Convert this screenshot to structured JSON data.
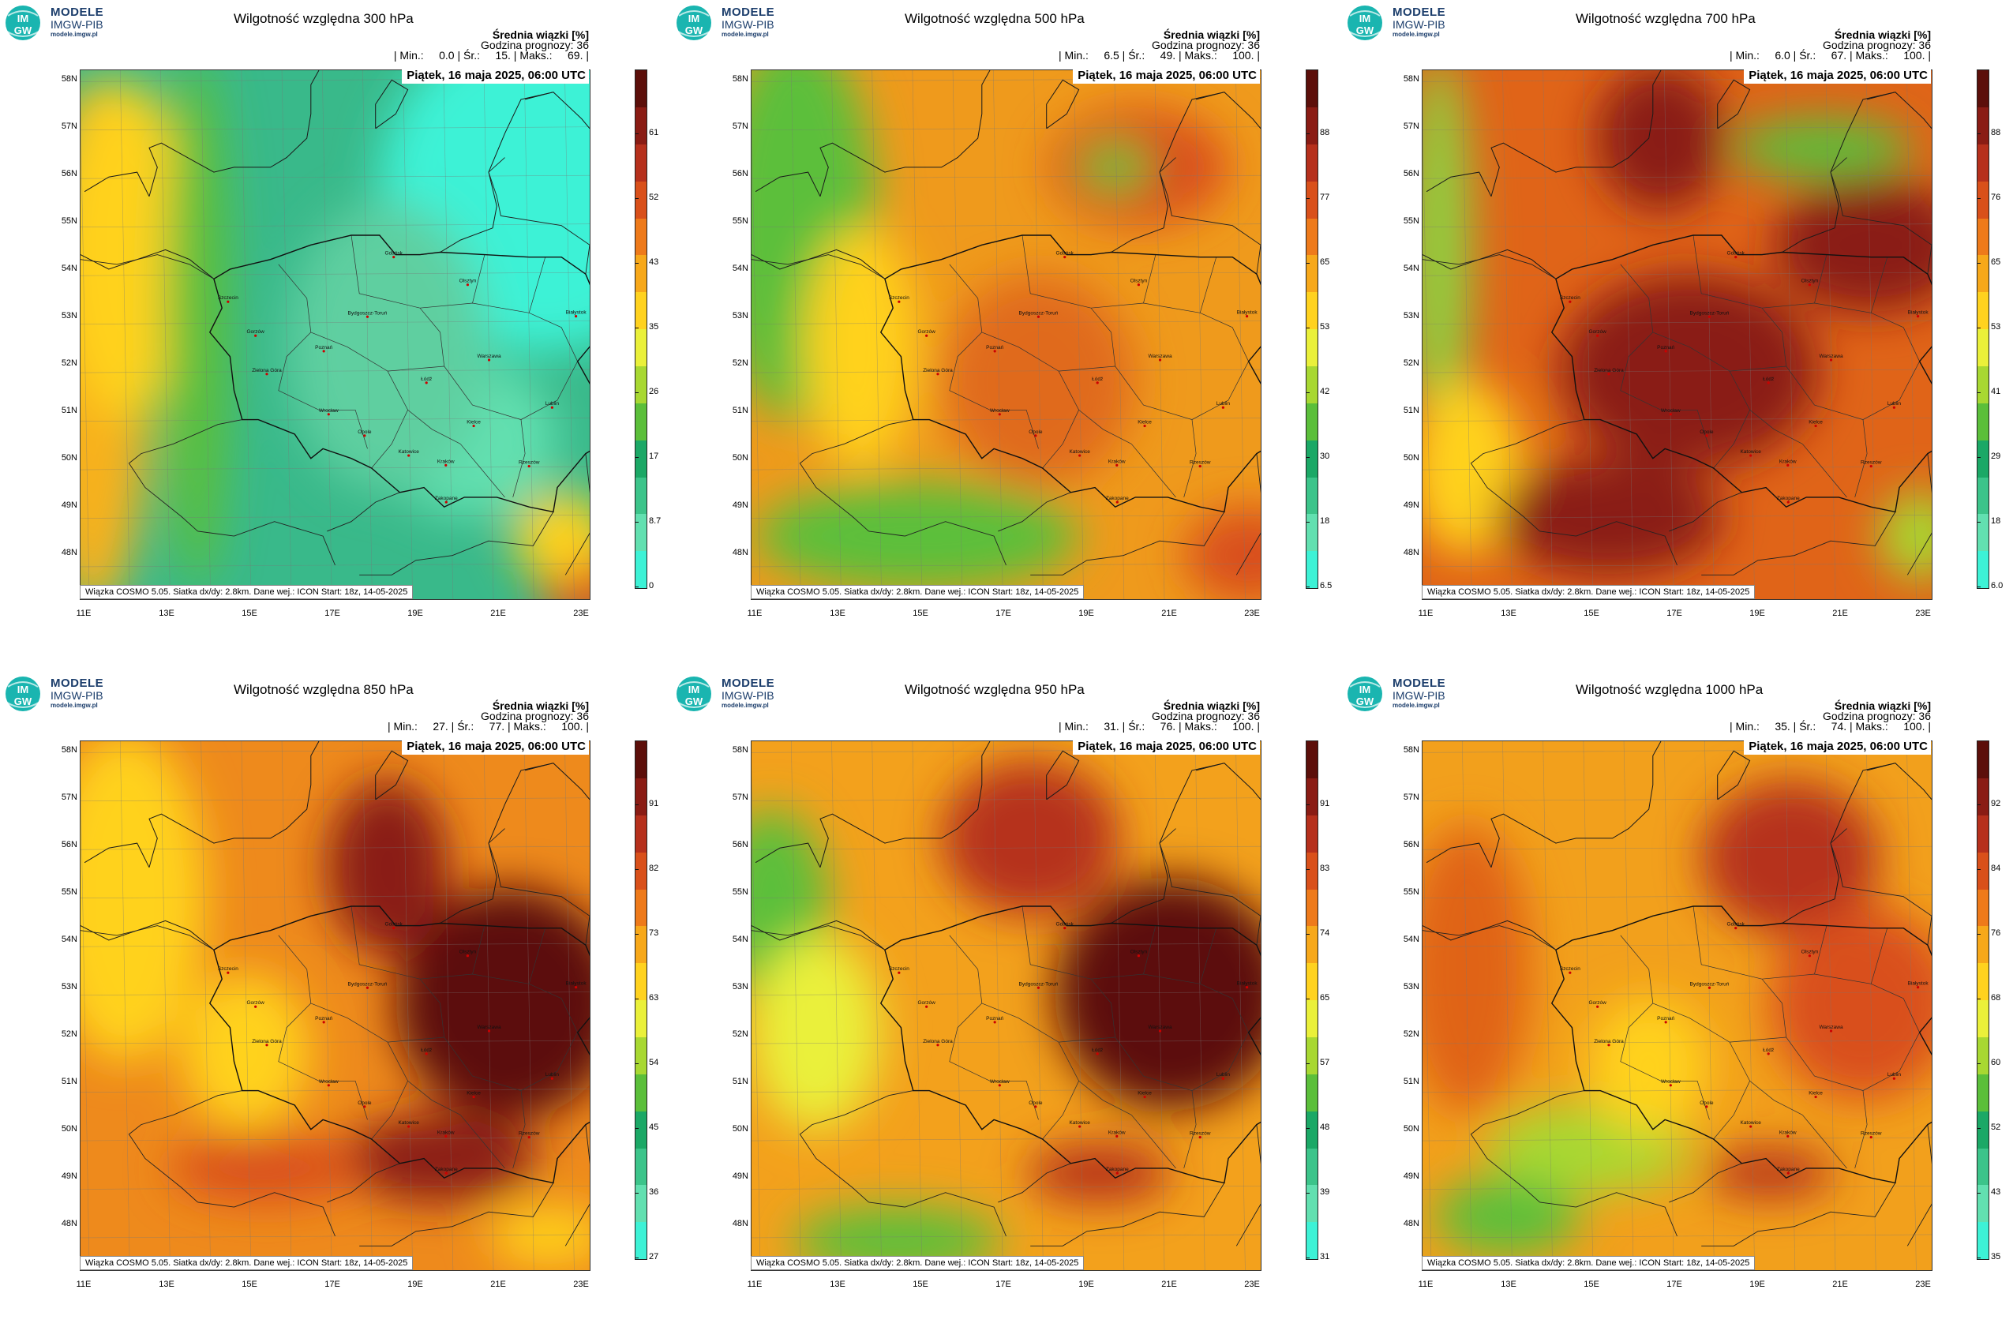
{
  "logo": {
    "badge_top": "IM",
    "badge_bottom": "GW",
    "brand": "MODELE",
    "org": "IMGW-PIB",
    "url": "modele.imgw.pl"
  },
  "common": {
    "mean_label": "Średnia wiązki [%]",
    "forecast_hour_label": "Godzina prognozy: 36",
    "date_label": "Piątek, 16 maja 2025, 06:00 UTC",
    "caption": "Wiązka COSMO 5.05. Siatka dx/dy: 2.8km. Dane wej.: ICON Start: 18z, 14-05-2025",
    "lat_labels": [
      "58N",
      "57N",
      "56N",
      "55N",
      "54N",
      "53N",
      "52N",
      "51N",
      "50N",
      "49N",
      "48N"
    ],
    "lon_labels": [
      "11E",
      "13E",
      "15E",
      "17E",
      "19E",
      "21E",
      "23E"
    ],
    "cities": [
      "Szczecin",
      "Gdańsk",
      "Olsztyn",
      "Białystok",
      "Bydgoszcz-Toruń",
      "Gorzów",
      "Poznań",
      "Warszawa",
      "Zielona Góra",
      "Łódź",
      "Lublin",
      "Wrocław",
      "Kielce",
      "Opole",
      "Katowice",
      "Kraków",
      "Rzeszów",
      "Zakopane"
    ]
  },
  "color_palettes": {
    "low_to_high": [
      "#3df2d6",
      "#62e0b0",
      "#3cc48a",
      "#1ba866",
      "#5bbf3a",
      "#a8d832",
      "#eaf03a",
      "#ffd21f",
      "#f7a81a",
      "#ee7a1a",
      "#d9501a",
      "#b6301c",
      "#8a1c14",
      "#5c0f0a"
    ]
  },
  "panels": [
    {
      "id": "p300",
      "title": "Wilgotność względna 300 hPa",
      "stats": "| Min.:     0.0 | Śr.:     15. | Maks.:     69. |",
      "colorbar_ticks": [
        "61",
        "52",
        "43",
        "35",
        "26",
        "17",
        "8.7",
        "0"
      ],
      "background_color": "#39b98a",
      "blobs": [
        {
          "shape": "ellipse",
          "lon": 22.3,
          "lat": 55.8,
          "rx_deg": 4.0,
          "ry_deg": 3.4,
          "color": "#3df2d6"
        },
        {
          "shape": "ellipse",
          "lon": 20.5,
          "lat": 50.6,
          "rx_deg": 2.2,
          "ry_deg": 1.6,
          "color": "#62e0b0"
        },
        {
          "shape": "ellipse",
          "lon": 18.5,
          "lat": 52.5,
          "rx_deg": 2.5,
          "ry_deg": 3.0,
          "color": "#5ecfa0"
        },
        {
          "shape": "ellipse",
          "lon": 11.2,
          "lat": 52.5,
          "rx_deg": 1.5,
          "ry_deg": 5.5,
          "color": "#f7b11a"
        },
        {
          "shape": "ellipse",
          "lon": 12.0,
          "lat": 54.5,
          "rx_deg": 1.6,
          "ry_deg": 3.5,
          "color": "#ffd21f"
        },
        {
          "shape": "ellipse",
          "lon": 13.8,
          "lat": 53.0,
          "rx_deg": 0.8,
          "ry_deg": 5.5,
          "color": "#5bbf3a"
        },
        {
          "shape": "ellipse",
          "lon": 23.4,
          "lat": 47.6,
          "rx_deg": 1.2,
          "ry_deg": 1.0,
          "color": "#d9501a"
        },
        {
          "shape": "ellipse",
          "lon": 22.8,
          "lat": 48.6,
          "rx_deg": 1.2,
          "ry_deg": 0.9,
          "color": "#ffd21f"
        }
      ]
    },
    {
      "id": "p500",
      "title": "Wilgotność względna 500 hPa",
      "stats": "| Min.:     6.5 | Śr.:     49. | Maks.:     100. |",
      "colorbar_ticks": [
        "88",
        "77",
        "65",
        "53",
        "42",
        "30",
        "18",
        "6.5"
      ],
      "background_color": "#ef9a1c",
      "blobs": [
        {
          "shape": "ellipse",
          "lon": 12.0,
          "lat": 55.0,
          "rx_deg": 2.0,
          "ry_deg": 4.0,
          "color": "#5bbf3a"
        },
        {
          "shape": "ellipse",
          "lon": 15.0,
          "lat": 48.6,
          "rx_deg": 4.0,
          "ry_deg": 1.1,
          "color": "#5bbf3a"
        },
        {
          "shape": "ellipse",
          "lon": 20.5,
          "lat": 56.2,
          "rx_deg": 2.2,
          "ry_deg": 1.2,
          "color": "#d9501a"
        },
        {
          "shape": "ellipse",
          "lon": 19.9,
          "lat": 56.2,
          "rx_deg": 0.9,
          "ry_deg": 0.5,
          "color": "#5bbf3a"
        },
        {
          "shape": "ellipse",
          "lon": 18.0,
          "lat": 51.8,
          "rx_deg": 2.4,
          "ry_deg": 2.2,
          "color": "#e06a1a"
        },
        {
          "shape": "ellipse",
          "lon": 13.6,
          "lat": 52.5,
          "rx_deg": 1.4,
          "ry_deg": 2.5,
          "color": "#ffd21f"
        },
        {
          "shape": "ellipse",
          "lon": 23.2,
          "lat": 48.2,
          "rx_deg": 1.6,
          "ry_deg": 1.0,
          "color": "#d9501a"
        }
      ]
    },
    {
      "id": "p700",
      "title": "Wilgotność względna 700 hPa",
      "stats": "| Min.:     6.0 | Śr.:     67. | Maks.:     100. |",
      "colorbar_ticks": [
        "88",
        "76",
        "65",
        "53",
        "41",
        "29",
        "18",
        "6.0"
      ],
      "background_color": "#e06418",
      "blobs": [
        {
          "shape": "ellipse",
          "lon": 11.3,
          "lat": 54.5,
          "rx_deg": 0.8,
          "ry_deg": 4.0,
          "color": "#8fd040"
        },
        {
          "shape": "ellipse",
          "lon": 12.0,
          "lat": 50.0,
          "rx_deg": 1.4,
          "ry_deg": 1.8,
          "color": "#ffd21f"
        },
        {
          "shape": "ellipse",
          "lon": 17.5,
          "lat": 52.0,
          "rx_deg": 3.2,
          "ry_deg": 2.0,
          "color": "#8a1c14"
        },
        {
          "shape": "ellipse",
          "lon": 15.5,
          "lat": 49.0,
          "rx_deg": 2.8,
          "ry_deg": 1.2,
          "color": "#8a1c14"
        },
        {
          "shape": "ellipse",
          "lon": 22.0,
          "lat": 54.6,
          "rx_deg": 2.4,
          "ry_deg": 1.4,
          "color": "#8a1c14"
        },
        {
          "shape": "ellipse",
          "lon": 20.8,
          "lat": 56.6,
          "rx_deg": 2.2,
          "ry_deg": 0.6,
          "color": "#5bbf3a"
        },
        {
          "shape": "ellipse",
          "lon": 16.8,
          "lat": 56.8,
          "rx_deg": 1.6,
          "ry_deg": 1.5,
          "color": "#8a1c14"
        },
        {
          "shape": "ellipse",
          "lon": 23.2,
          "lat": 48.6,
          "rx_deg": 1.0,
          "ry_deg": 0.9,
          "color": "#a8d832"
        }
      ]
    },
    {
      "id": "p850",
      "title": "Wilgotność względna 850 hPa",
      "stats": "| Min.:     27. | Śr.:     77. | Maks.:     100. |",
      "colorbar_ticks": [
        "91",
        "82",
        "73",
        "63",
        "54",
        "45",
        "36",
        "27"
      ],
      "background_color": "#ee8a1c",
      "blobs": [
        {
          "shape": "ellipse",
          "lon": 12.0,
          "lat": 55.0,
          "rx_deg": 2.0,
          "ry_deg": 3.4,
          "color": "#ffd21f"
        },
        {
          "shape": "ellipse",
          "lon": 21.5,
          "lat": 52.8,
          "rx_deg": 2.8,
          "ry_deg": 2.4,
          "color": "#5c0f0a"
        },
        {
          "shape": "ellipse",
          "lon": 18.5,
          "lat": 55.6,
          "rx_deg": 1.5,
          "ry_deg": 1.8,
          "color": "#8a1c14"
        },
        {
          "shape": "ellipse",
          "lon": 19.8,
          "lat": 49.6,
          "rx_deg": 2.4,
          "ry_deg": 0.9,
          "color": "#8a1c14"
        },
        {
          "shape": "ellipse",
          "lon": 15.0,
          "lat": 51.8,
          "rx_deg": 1.6,
          "ry_deg": 1.6,
          "color": "#ffd21f"
        },
        {
          "shape": "ellipse",
          "lon": 15.5,
          "lat": 49.4,
          "rx_deg": 2.4,
          "ry_deg": 0.7,
          "color": "#d9501a"
        },
        {
          "shape": "ellipse",
          "lon": 22.5,
          "lat": 48.0,
          "rx_deg": 1.5,
          "ry_deg": 0.6,
          "color": "#ffd21f"
        }
      ]
    },
    {
      "id": "p950",
      "title": "Wilgotność względna 950 hPa",
      "stats": "| Min.:     31. | Śr.:     76. | Maks.:     100. |",
      "colorbar_ticks": [
        "91",
        "83",
        "74",
        "65",
        "57",
        "48",
        "39",
        "31"
      ],
      "background_color": "#f3a11c",
      "blobs": [
        {
          "shape": "ellipse",
          "lon": 11.4,
          "lat": 54.8,
          "rx_deg": 1.4,
          "ry_deg": 2.0,
          "color": "#5bbf3a"
        },
        {
          "shape": "ellipse",
          "lon": 12.5,
          "lat": 52.2,
          "rx_deg": 1.6,
          "ry_deg": 2.0,
          "color": "#eaf03a"
        },
        {
          "shape": "ellipse",
          "lon": 21.3,
          "lat": 53.0,
          "rx_deg": 2.9,
          "ry_deg": 2.4,
          "color": "#5c0f0a"
        },
        {
          "shape": "ellipse",
          "lon": 17.8,
          "lat": 56.2,
          "rx_deg": 2.2,
          "ry_deg": 1.6,
          "color": "#b6301c"
        },
        {
          "shape": "ellipse",
          "lon": 14.5,
          "lat": 47.9,
          "rx_deg": 2.6,
          "ry_deg": 0.7,
          "color": "#5bbf3a"
        },
        {
          "shape": "ellipse",
          "lon": 19.5,
          "lat": 49.3,
          "rx_deg": 1.8,
          "ry_deg": 0.6,
          "color": "#b6301c"
        }
      ]
    },
    {
      "id": "p1000",
      "title": "Wilgotność względna 1000 hPa",
      "stats": "| Min.:     35. | Śr.:     74. | Maks.:     100. |",
      "colorbar_ticks": [
        "92",
        "84",
        "76",
        "68",
        "60",
        "52",
        "43",
        "35"
      ],
      "background_color": "#f2a01c",
      "blobs": [
        {
          "shape": "ellipse",
          "lon": 12.0,
          "lat": 53.5,
          "rx_deg": 1.6,
          "ry_deg": 3.0,
          "color": "#e06418"
        },
        {
          "shape": "ellipse",
          "lon": 20.0,
          "lat": 55.8,
          "rx_deg": 2.2,
          "ry_deg": 1.6,
          "color": "#b6301c"
        },
        {
          "shape": "ellipse",
          "lon": 21.8,
          "lat": 52.8,
          "rx_deg": 2.3,
          "ry_deg": 2.0,
          "color": "#d9501a"
        },
        {
          "shape": "ellipse",
          "lon": 15.0,
          "lat": 49.8,
          "rx_deg": 2.5,
          "ry_deg": 0.9,
          "color": "#a8d832"
        },
        {
          "shape": "ellipse",
          "lon": 13.0,
          "lat": 48.4,
          "rx_deg": 1.8,
          "ry_deg": 0.8,
          "color": "#5bbf3a"
        },
        {
          "shape": "ellipse",
          "lon": 19.5,
          "lat": 49.3,
          "rx_deg": 1.6,
          "ry_deg": 0.5,
          "color": "#b6301c"
        },
        {
          "shape": "ellipse",
          "lon": 16.5,
          "lat": 51.5,
          "rx_deg": 1.5,
          "ry_deg": 1.4,
          "color": "#ffd21f"
        }
      ]
    }
  ]
}
